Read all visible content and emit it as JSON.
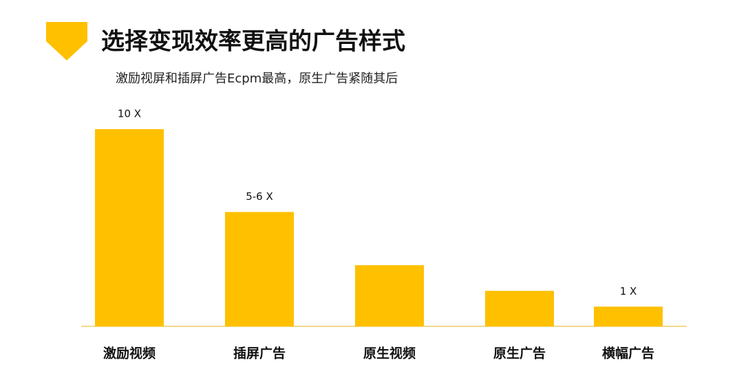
{
  "chart_data": {
    "type": "bar",
    "title": "选择变现效率更高的广告样式",
    "subtitle": "激励视屏和插屏广告Ecpm最高，原生广告紧随其后",
    "categories": [
      "激励视频",
      "插屏广告",
      "原生视频",
      "原生广告",
      "横幅广告"
    ],
    "values": [
      10,
      5.8,
      3.1,
      1.8,
      1
    ],
    "value_labels": [
      "10 X",
      "5-6 X",
      null,
      null,
      "1 X"
    ],
    "color": "#ffc000"
  }
}
